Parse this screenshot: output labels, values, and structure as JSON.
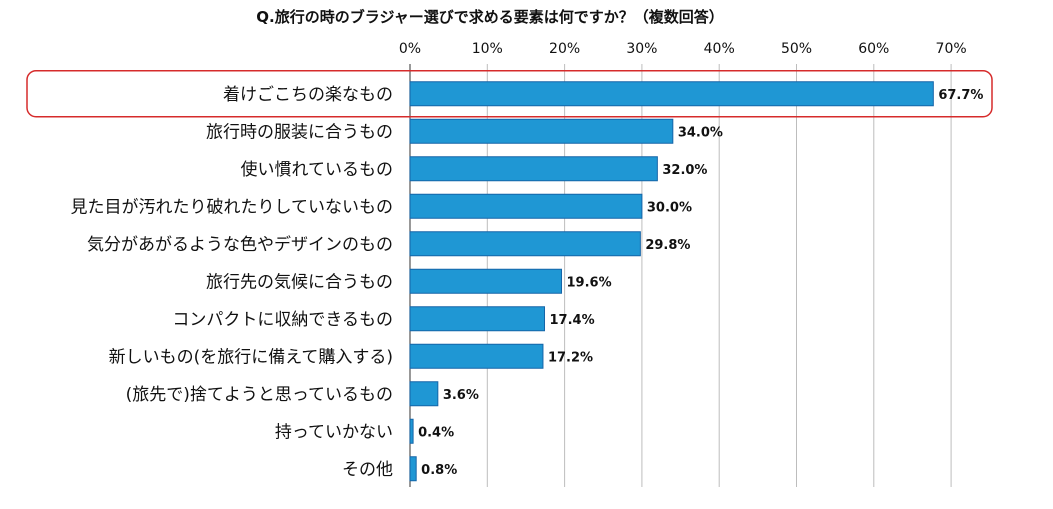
{
  "chart_data": {
    "type": "bar",
    "orientation": "horizontal",
    "title": "Q.旅行の時のブラジャー選びで求める要素は何ですか？（複数回答）",
    "categories": [
      "着けごこちの楽なもの",
      "旅行時の服装に合うもの",
      "使い慣れているもの",
      "見た目が汚れたり破れたりしていないもの",
      "気分があがるような色やデザインのもの",
      "旅行先の気候に合うもの",
      "コンパクトに収納できるもの",
      "新しいもの(を旅行に備えて購入する)",
      "(旅先で)捨てようと思っているもの",
      "持っていかない",
      "その他"
    ],
    "values": [
      67.7,
      34.0,
      32.0,
      30.0,
      29.8,
      19.6,
      17.4,
      17.2,
      3.6,
      0.4,
      0.8
    ],
    "value_labels": [
      "67.7%",
      "34.0%",
      "32.0%",
      "30.0%",
      "29.8%",
      "19.6%",
      "17.4%",
      "17.2%",
      "3.6%",
      "0.4%",
      "0.8%"
    ],
    "xticks": [
      "0%",
      "10%",
      "20%",
      "30%",
      "40%",
      "50%",
      "60%",
      "70%"
    ],
    "xlim": [
      0,
      70
    ],
    "axis_position": "top",
    "grid": true,
    "highlighted_category": "着けごこちの楽なもの",
    "colors": {
      "bar": "#1f97d4",
      "bar_edge": "#1565a8",
      "grid": "#bdbdbd",
      "highlight": "#d62b2b"
    }
  }
}
